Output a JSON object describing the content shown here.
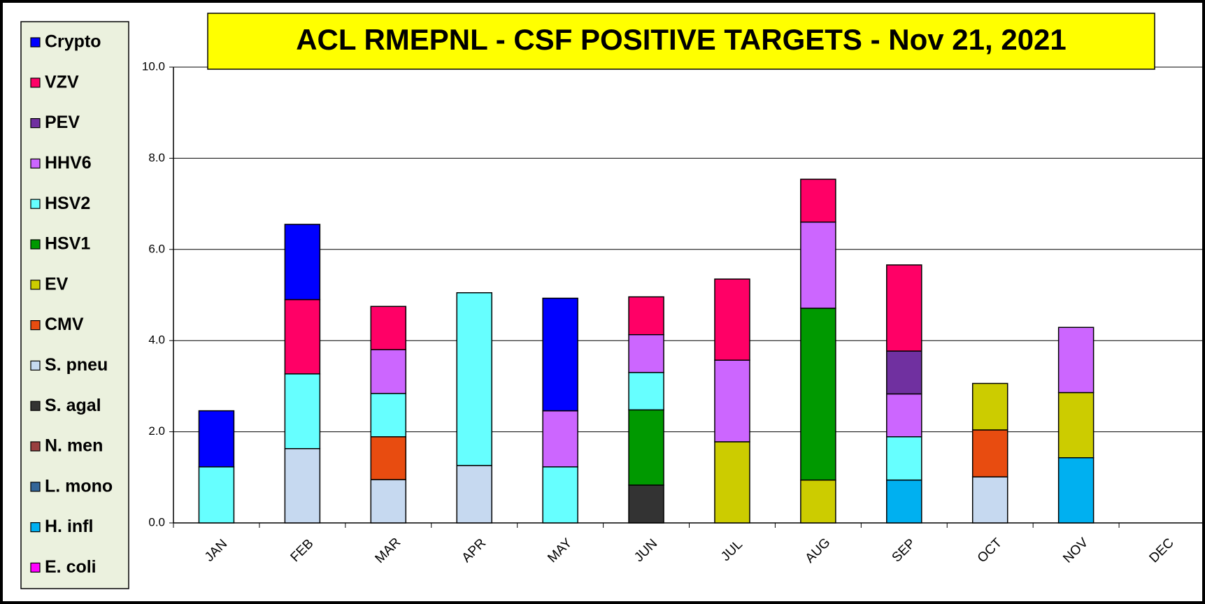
{
  "chart_data": {
    "type": "bar",
    "stacked": true,
    "title": "ACL RMEPNL - CSF POSITIVE TARGETS - Nov 21, 2021",
    "categories": [
      "JAN",
      "FEB",
      "MAR",
      "APR",
      "MAY",
      "JUN",
      "JUL",
      "AUG",
      "SEP",
      "OCT",
      "NOV",
      "DEC"
    ],
    "ylim": [
      0,
      10
    ],
    "yticks": [
      {
        "value": 0,
        "label": "0.0"
      },
      {
        "value": 2,
        "label": "2.0"
      },
      {
        "value": 4,
        "label": "4.0"
      },
      {
        "value": 6,
        "label": "6.0"
      },
      {
        "value": 8,
        "label": "8.0"
      },
      {
        "value": 10,
        "label": "10.0"
      }
    ],
    "grid": true,
    "legend": "left",
    "series": [
      {
        "name": "Crypto",
        "color": "#0000ff",
        "values": [
          1.23,
          1.65,
          null,
          null,
          2.47,
          null,
          null,
          null,
          null,
          null,
          null,
          null
        ]
      },
      {
        "name": "VZV",
        "color": "#ff0066",
        "values": [
          null,
          1.63,
          0.95,
          null,
          null,
          0.83,
          1.78,
          0.94,
          1.89,
          null,
          null,
          null
        ]
      },
      {
        "name": "PEV",
        "color": "#7030a0",
        "values": [
          null,
          null,
          null,
          null,
          null,
          null,
          null,
          null,
          0.94,
          null,
          null,
          null
        ]
      },
      {
        "name": "HHV6",
        "color": "#cc66ff",
        "values": [
          null,
          null,
          0.96,
          null,
          1.23,
          0.83,
          1.79,
          1.89,
          0.94,
          null,
          1.43,
          null
        ]
      },
      {
        "name": "HSV2",
        "color": "#66ffff",
        "values": [
          1.23,
          1.64,
          0.95,
          3.79,
          1.23,
          0.82,
          null,
          null,
          0.95,
          null,
          null,
          null
        ]
      },
      {
        "name": "HSV1",
        "color": "#009900",
        "values": [
          null,
          null,
          null,
          null,
          null,
          1.65,
          null,
          3.77,
          null,
          null,
          null,
          null
        ]
      },
      {
        "name": "EV",
        "color": "#cccc00",
        "values": [
          null,
          null,
          null,
          null,
          null,
          null,
          1.78,
          0.94,
          null,
          1.02,
          1.43,
          null
        ]
      },
      {
        "name": "CMV",
        "color": "#e84c10",
        "values": [
          null,
          null,
          0.94,
          null,
          null,
          null,
          null,
          null,
          null,
          1.03,
          null,
          null
        ]
      },
      {
        "name": "S. pneu",
        "color": "#c6d9f0",
        "values": [
          null,
          1.63,
          0.95,
          1.26,
          null,
          null,
          null,
          null,
          null,
          1.01,
          null,
          null
        ]
      },
      {
        "name": "S. agal",
        "color": "#333333",
        "values": [
          null,
          null,
          null,
          null,
          null,
          0.83,
          null,
          null,
          null,
          null,
          null,
          null
        ]
      },
      {
        "name": "N. men",
        "color": "#993f3f",
        "values": [
          null,
          null,
          null,
          null,
          null,
          null,
          null,
          null,
          null,
          null,
          null,
          null
        ]
      },
      {
        "name": "L. mono",
        "color": "#336699",
        "values": [
          null,
          null,
          null,
          null,
          null,
          null,
          null,
          null,
          null,
          null,
          null,
          null
        ]
      },
      {
        "name": "H. infl",
        "color": "#00b0f0",
        "values": [
          null,
          null,
          null,
          null,
          null,
          null,
          null,
          null,
          0.94,
          null,
          1.43,
          null
        ]
      },
      {
        "name": "E. coli",
        "color": "#ff00ff",
        "values": [
          null,
          null,
          null,
          null,
          null,
          null,
          null,
          null,
          null,
          null,
          null,
          null
        ]
      }
    ]
  }
}
